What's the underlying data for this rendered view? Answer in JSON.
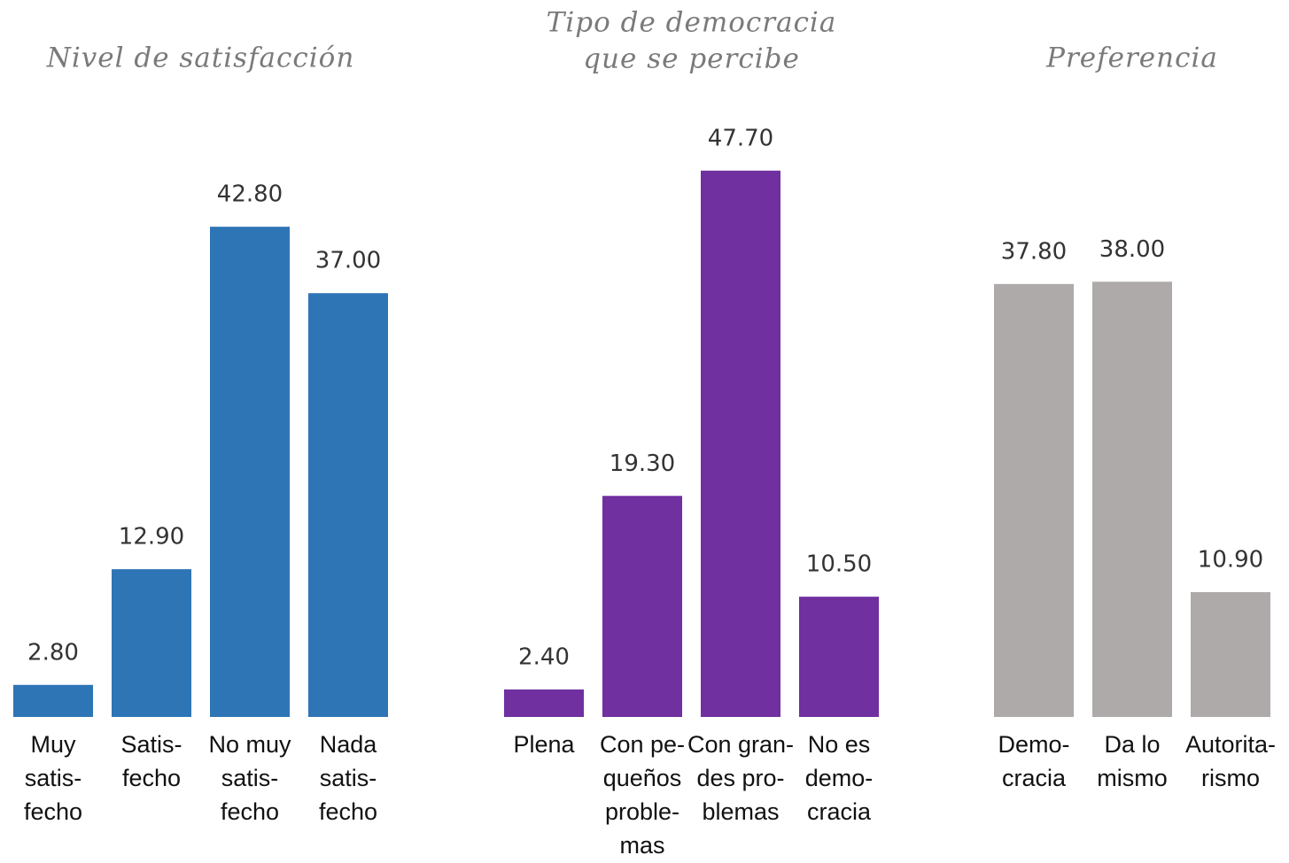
{
  "chart_data": [
    {
      "type": "bar",
      "title": [
        "Nivel de satisfacción"
      ],
      "categories": [
        [
          "Muy",
          "satis-",
          "fecho"
        ],
        [
          "Satis-",
          "fecho"
        ],
        [
          "No muy",
          "satis-",
          "fecho"
        ],
        [
          "Nada",
          "satis-",
          "fecho"
        ]
      ],
      "values": [
        2.8,
        12.9,
        42.8,
        37.0
      ],
      "value_labels": [
        "2.80",
        "12.90",
        "42.80",
        "37.00"
      ],
      "color": "#2e75b6"
    },
    {
      "type": "bar",
      "title": [
        "Tipo de democracia",
        "que se percibe"
      ],
      "categories": [
        [
          "Plena"
        ],
        [
          "Con pe-",
          "queños",
          "proble-",
          "mas"
        ],
        [
          "Con gran-",
          "des pro-",
          "blemas"
        ],
        [
          "No es",
          "demo-",
          "cracia"
        ]
      ],
      "values": [
        2.4,
        19.3,
        47.7,
        10.5
      ],
      "value_labels": [
        "2.40",
        "19.30",
        "47.70",
        "10.50"
      ],
      "color": "#7030a0"
    },
    {
      "type": "bar",
      "title": [
        "Preferencia"
      ],
      "categories": [
        [
          "Demo-",
          "cracia"
        ],
        [
          "Da lo",
          "mismo"
        ],
        [
          "Autorita-",
          "rismo"
        ]
      ],
      "values": [
        37.8,
        38.0,
        10.9
      ],
      "value_labels": [
        "37.80",
        "38.00",
        "10.90"
      ],
      "color": "#aeaaaa"
    }
  ]
}
